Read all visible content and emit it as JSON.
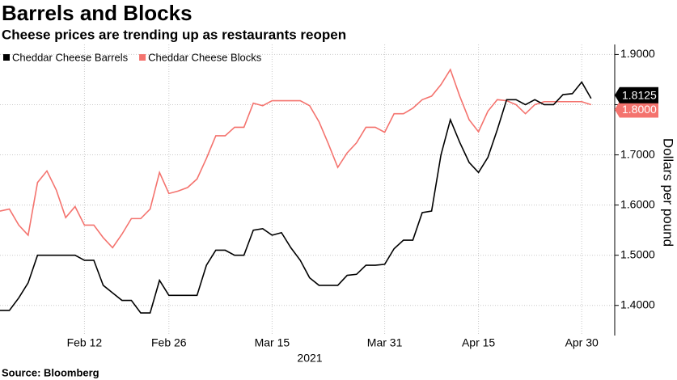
{
  "chart_data": {
    "type": "line",
    "title": "Barrels and Blocks",
    "subtitle": "Cheese prices are trending up as restaurants reopen",
    "source": "Source: Bloomberg",
    "y_label": "Dollars per pound",
    "x_label": "2021",
    "categories": [
      null,
      null,
      null,
      null,
      null,
      null,
      null,
      null,
      null,
      "Feb 12",
      null,
      null,
      null,
      null,
      null,
      null,
      null,
      null,
      "Feb 26",
      null,
      null,
      null,
      null,
      null,
      null,
      null,
      null,
      null,
      null,
      "Mar 15",
      null,
      null,
      null,
      null,
      null,
      null,
      null,
      null,
      null,
      null,
      null,
      "Mar 31",
      null,
      null,
      null,
      null,
      null,
      null,
      null,
      null,
      null,
      "Apr 15",
      null,
      null,
      null,
      null,
      null,
      null,
      null,
      null,
      null,
      null,
      "Apr 30",
      null
    ],
    "series": [
      {
        "name": "Cheddar Cheese Barrels",
        "color": "#000000",
        "last_label": "1.8125",
        "values": [
          1.39,
          1.39,
          1.415,
          1.445,
          1.5,
          1.5,
          1.5,
          1.5,
          1.5,
          1.49,
          1.49,
          1.44,
          1.425,
          1.41,
          1.41,
          1.385,
          1.385,
          1.45,
          1.42,
          1.42,
          1.42,
          1.42,
          1.48,
          1.51,
          1.51,
          1.5,
          1.5,
          1.55,
          1.553,
          1.54,
          1.545,
          1.515,
          1.49,
          1.455,
          1.44,
          1.44,
          1.44,
          1.46,
          1.462,
          1.48,
          1.48,
          1.482,
          1.513,
          1.53,
          1.53,
          1.585,
          1.588,
          1.7,
          1.77,
          1.725,
          1.685,
          1.665,
          1.695,
          1.75,
          1.81,
          1.81,
          1.8,
          1.81,
          1.8,
          1.8,
          1.82,
          1.822,
          1.845,
          1.8125
        ]
      },
      {
        "name": "Cheddar Cheese Blocks",
        "color": "#f4736e",
        "last_label": "1.8000",
        "values": [
          1.588,
          1.592,
          1.56,
          1.54,
          1.645,
          1.668,
          1.63,
          1.575,
          1.597,
          1.56,
          1.56,
          1.535,
          1.515,
          1.542,
          1.573,
          1.573,
          1.592,
          1.665,
          1.623,
          1.628,
          1.635,
          1.652,
          1.693,
          1.738,
          1.738,
          1.755,
          1.755,
          1.803,
          1.798,
          1.808,
          1.808,
          1.808,
          1.808,
          1.798,
          1.766,
          1.722,
          1.675,
          1.704,
          1.724,
          1.755,
          1.755,
          1.745,
          1.782,
          1.782,
          1.793,
          1.81,
          1.817,
          1.84,
          1.87,
          1.817,
          1.77,
          1.746,
          1.787,
          1.81,
          1.808,
          1.8,
          1.782,
          1.8,
          1.806,
          1.806,
          1.806,
          1.806,
          1.806,
          1.8
        ]
      }
    ],
    "ylim": [
      1.34,
      1.92
    ],
    "yticks": [
      {
        "value": 1.4,
        "label": "1.4000"
      },
      {
        "value": 1.5,
        "label": "1.5000"
      },
      {
        "value": 1.6,
        "label": "1.6000"
      },
      {
        "value": 1.7,
        "label": "1.7000"
      },
      {
        "value": 1.8,
        "label": "1.8000"
      },
      {
        "value": 1.9,
        "label": "1.9000"
      }
    ],
    "grid": true,
    "legend": "top-left"
  }
}
